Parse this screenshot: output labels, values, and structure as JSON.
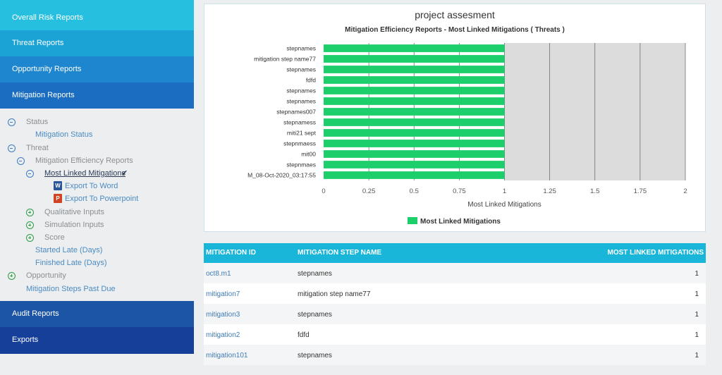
{
  "sidebar": {
    "nav_top": [
      {
        "label": "Overall Risk Reports",
        "color": "#27bfe0"
      },
      {
        "label": "Threat Reports",
        "color": "#1ba3d6"
      },
      {
        "label": "Opportunity Reports",
        "color": "#1e86cf"
      },
      {
        "label": "Mitigation Reports",
        "color": "#1a6dc0"
      }
    ],
    "tree": {
      "status": "Status",
      "mitigation_status": "Mitigation Status",
      "threat": "Threat",
      "mitigation_efficiency": "Mitigation Efficiency Reports",
      "most_linked": "Most Linked Mitigations",
      "export_word": "Export To Word",
      "export_ppt": "Export To Powerpoint",
      "qualitative": "Qualitative Inputs",
      "simulation": "Simulation Inputs",
      "score": "Score",
      "started_late": "Started Late (Days)",
      "finished_late": "Finished Late (Days)",
      "opportunity": "Opportunity",
      "past_due": "Mitigation Steps Past Due",
      "word_icon_letter": "W",
      "ppt_icon_letter": "P"
    },
    "nav_bottom": [
      {
        "label": "Audit Reports",
        "color": "#1d55a6"
      },
      {
        "label": "Exports",
        "color": "#163f99"
      }
    ]
  },
  "chart_data": {
    "type": "bar",
    "orientation": "horizontal",
    "title": "project assesment",
    "subtitle": "Mitigation Efficiency Reports - Most Linked Mitigations ( Threats )",
    "categories": [
      "stepnames",
      "mitigation step name77",
      "stepnames",
      "fdfd",
      "stepnames",
      "stepnames",
      "stepnames007",
      "stepnamess",
      "miti21 sept",
      "stepnmaess",
      "mit00",
      "stepnmaes",
      "M_08-Oct-2020_03:17:55"
    ],
    "series": [
      {
        "name": "Most Linked Mitigations",
        "values": [
          1,
          1,
          1,
          1,
          1,
          1,
          1,
          1,
          1,
          1,
          1,
          1,
          1
        ],
        "color": "#1ccf6b"
      }
    ],
    "xlabel": "Most Linked Mitigations",
    "xlim": [
      0,
      2
    ],
    "xticks": [
      "0",
      "0.25",
      "0.5",
      "0.75",
      "1",
      "1.25",
      "1.5",
      "1.75",
      "2"
    ],
    "legend_position": "bottom"
  },
  "table": {
    "headers": [
      "MITIGATION ID",
      "MITIGATION STEP NAME",
      "MOST LINKED MITIGATIONS"
    ],
    "rows": [
      {
        "id": "oct8.m1",
        "name": "stepnames",
        "count": "1"
      },
      {
        "id": "mitigation7",
        "name": "mitigation step name77",
        "count": "1"
      },
      {
        "id": "mitigation3",
        "name": "stepnames",
        "count": "1"
      },
      {
        "id": "mitigation2",
        "name": "fdfd",
        "count": "1"
      },
      {
        "id": "mitigation101",
        "name": "stepnames",
        "count": "1"
      }
    ]
  }
}
